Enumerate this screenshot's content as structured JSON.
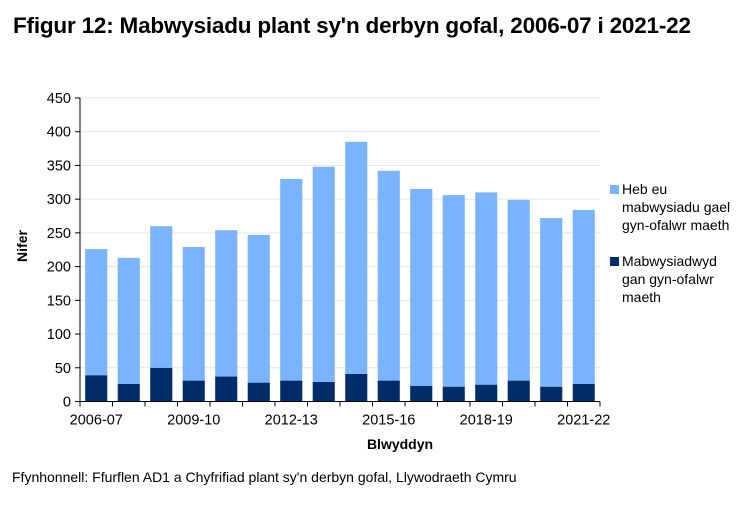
{
  "title": "Ffigur 12: Mabwysiadu plant sy'n derbyn gofal, 2006-07 i 2021-22",
  "source": "Ffynhonnell: Ffurflen AD1 a Chyfrifiad plant sy'n derbyn gofal, Llywodraeth Cymru",
  "legend": [
    {
      "label": "Heb eu mabwysiadu gael gyn-ofalwr maeth",
      "color": "#7AB3FF"
    },
    {
      "label": "Mabwysiadwyd gan gyn-ofalwr maeth",
      "color": "#002D6A"
    }
  ],
  "chart_data": {
    "type": "bar",
    "stacked": true,
    "title": "Ffigur 12: Mabwysiadu plant sy'n derbyn gofal, 2006-07 i 2021-22",
    "xlabel": "Blwyddyn",
    "ylabel": "Nifer",
    "ylim": [
      0,
      450
    ],
    "yticks": [
      0,
      50,
      100,
      150,
      200,
      250,
      300,
      350,
      400,
      450
    ],
    "xtick_labels": [
      "2006-07",
      "2009-10",
      "2012-13",
      "2015-16",
      "2018-19",
      "2021-22"
    ],
    "grid": true,
    "legend_position": "right",
    "categories": [
      "2006-07",
      "2007-08",
      "2008-09",
      "2009-10",
      "2010-11",
      "2011-12",
      "2012-13",
      "2013-14",
      "2014-15",
      "2015-16",
      "2016-17",
      "2017-18",
      "2018-19",
      "2019-20",
      "2020-21",
      "2021-22"
    ],
    "series": [
      {
        "name": "Mabwysiadwyd gan gyn-ofalwr maeth",
        "color": "#002D6A",
        "values": [
          39,
          26,
          50,
          31,
          37,
          28,
          31,
          29,
          41,
          31,
          23,
          22,
          25,
          31,
          22,
          26
        ]
      },
      {
        "name": "Heb eu mabwysiadu gael gyn-ofalwr maeth",
        "color": "#7AB3FF",
        "values": [
          187,
          187,
          210,
          198,
          217,
          219,
          299,
          319,
          344,
          311,
          292,
          284,
          285,
          268,
          250,
          258
        ]
      }
    ],
    "totals": [
      226,
      213,
      260,
      229,
      254,
      247,
      330,
      348,
      385,
      342,
      315,
      306,
      310,
      299,
      272,
      284
    ]
  }
}
